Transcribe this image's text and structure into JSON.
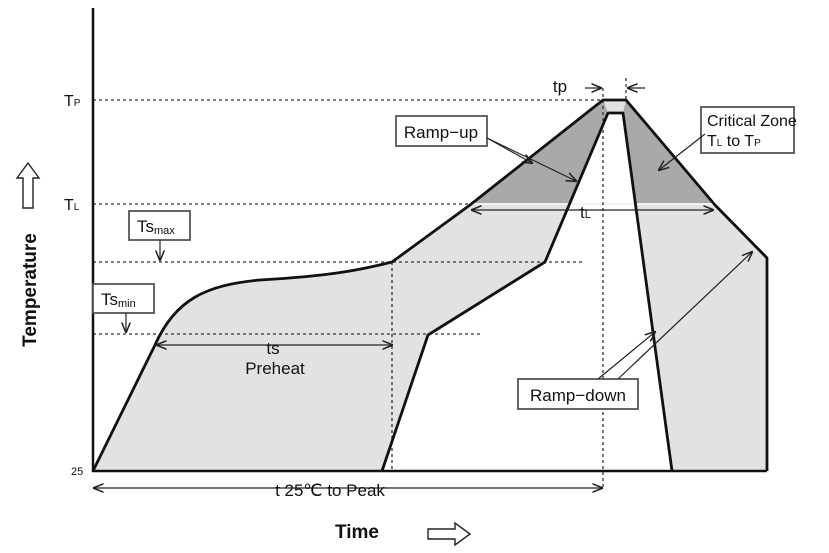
{
  "axes": {
    "y_label": "Temperature",
    "x_label": "Time",
    "y_origin_label": "25"
  },
  "levels": {
    "tp": {
      "main": "T",
      "sub": "P"
    },
    "tl": {
      "main": "T",
      "sub": "L"
    }
  },
  "annotations": {
    "ts_max": {
      "main": "Ts",
      "sub": "max"
    },
    "ts_min": {
      "main": "Ts",
      "sub": "min"
    },
    "ts": "ts",
    "preheat": "Preheat",
    "tp_small": "tp",
    "tl_small": {
      "main": "t",
      "sub": "L"
    },
    "t25_to_peak": "t 25℃ to Peak",
    "ramp_up": "Ramp−up",
    "ramp_down": "Ramp−down",
    "critical_zone_line1": "Critical Zone",
    "critical_zone_line2": {
      "a": "T",
      "a_sub": "L",
      "mid": " to T",
      "b_sub": "P"
    }
  },
  "colors": {
    "profile_fill": "#e2e2e2",
    "critical_fill": "#a9a9a9",
    "outline": "#111111"
  }
}
